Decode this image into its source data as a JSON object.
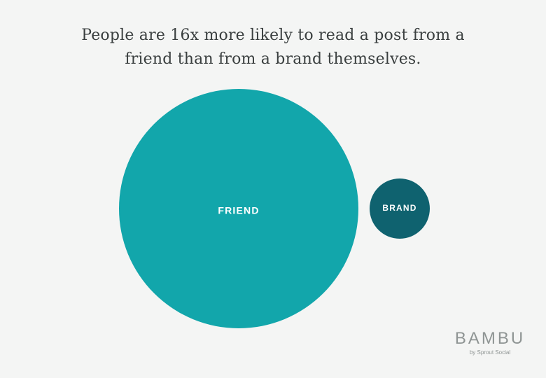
{
  "title_lines": [
    "People are 16x more likely to read a post from a",
    "friend than from a brand themselves."
  ],
  "chart_data": {
    "type": "bubble",
    "title": "People are 16x more likely to read a post from a friend than from a brand themselves.",
    "categories": [
      "FRIEND",
      "BRAND"
    ],
    "values": [
      16,
      1
    ],
    "colors": [
      "#12a6ab",
      "#0f626f"
    ]
  },
  "logo": {
    "word": "BAMBU",
    "sub": "by Sprout Social"
  }
}
